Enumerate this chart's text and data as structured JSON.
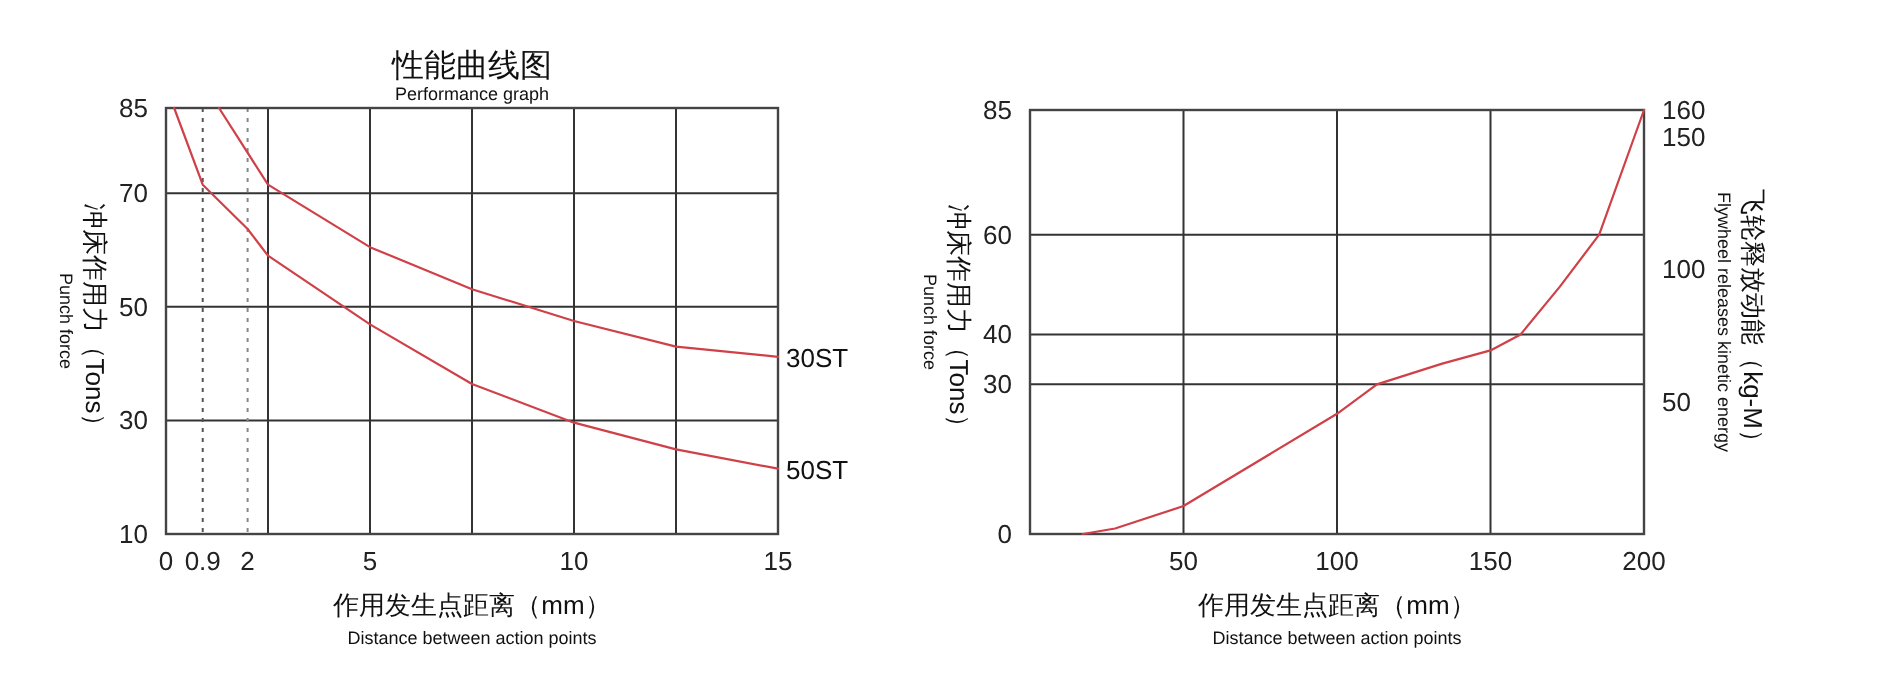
{
  "chart_data": [
    {
      "type": "line",
      "title": "性能曲线图",
      "subtitle": "Performance graph",
      "xlabel": "作用发生点距离（mm）\nDistance between action points",
      "ylabel": "冲床作用力（Tons）\nPunch force",
      "series": [
        {
          "name": "30ST",
          "color": "#d04048",
          "x": [
            1.3,
            2.5,
            5,
            7.5,
            10,
            12.5,
            15
          ],
          "values": [
            85,
            71.5,
            60.5,
            53.1,
            47.5,
            43,
            41.2
          ]
        },
        {
          "name": "50ST",
          "color": "#d04048",
          "x": [
            0.2,
            0.9,
            2,
            2.5,
            5,
            7.5,
            10,
            12.5,
            15
          ],
          "values": [
            85,
            71.5,
            63.7,
            59,
            46.9,
            36.4,
            29.6,
            24.9,
            21.5
          ]
        }
      ],
      "xlim": [
        0,
        15
      ],
      "ylim": [
        10,
        85
      ],
      "xticks": [
        0,
        0.9,
        2,
        {
          "value": 2.5,
          "label": null
        },
        5,
        {
          "value": 7.5,
          "label": null
        },
        10,
        {
          "value": 12.5,
          "label": null
        },
        15
      ],
      "yticks": [
        10,
        30,
        50,
        70,
        85
      ],
      "grid": true,
      "ref_lines": [
        {
          "axis": "x",
          "value": 0.9,
          "label": null,
          "line_style": "dotted",
          "color": "#555555"
        },
        {
          "axis": "x",
          "value": 2,
          "label": null,
          "line_style": "dotted",
          "color": "#888888"
        }
      ]
    },
    {
      "type": "line",
      "xlabel": "作用发生点距离（mm）\nDistance between action points",
      "ylabel": "冲床作用力（Tons）\nPunch force",
      "y2label": "飞轮释放动能（kg-M）\nFlywheel releases kinetic energy",
      "series": [
        {
          "color": "#d04048",
          "x": [
            17.2,
            27.7,
            50,
            100,
            113,
            134,
            150,
            159.8,
            172.6,
            185.4,
            200
          ],
          "values": [
            0,
            1.1,
            5.6,
            24.1,
            30,
            34.1,
            36.8,
            40,
            49.6,
            60,
            85
          ]
        }
      ],
      "xlim": [
        0,
        200
      ],
      "ylim": [
        0,
        85
      ],
      "xticks": [
        50,
        100,
        150,
        200
      ],
      "yticks": [
        0,
        30,
        40,
        60,
        85
      ],
      "y2lim": [
        0,
        160
      ],
      "y2ticks": [
        50,
        100,
        150,
        160
      ],
      "grid": true
    }
  ]
}
